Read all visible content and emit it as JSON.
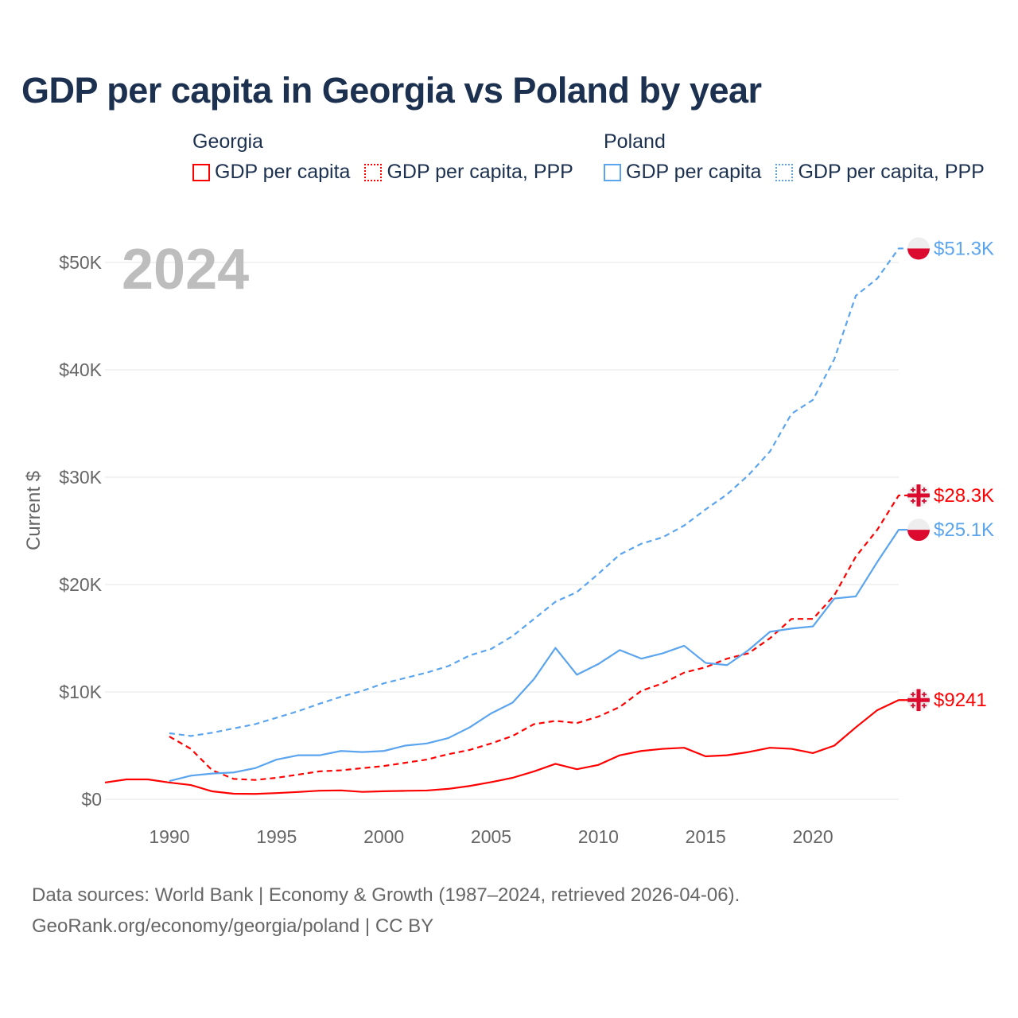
{
  "title": "GDP per capita in Georgia vs Poland by year",
  "legend": [
    {
      "country": "Georgia",
      "color": "#ff0000",
      "items": [
        "GDP per capita",
        "GDP per capita, PPP"
      ]
    },
    {
      "country": "Poland",
      "color": "#5ba4ee",
      "items": [
        "GDP per capita",
        "GDP per capita, PPP"
      ]
    }
  ],
  "source": {
    "line1": "Data sources: World Bank | Economy & Growth (1987–2024, retrieved 2026-04-06).",
    "line2": "GeoRank.org/economy/georgia/poland | CC BY"
  },
  "chart_data": {
    "type": "line",
    "title": "GDP per capita in Georgia vs Poland by year",
    "ylabel": "Current $",
    "xlabel": "",
    "year_watermark": "2024",
    "xlim": [
      1987,
      2024
    ],
    "ylim": [
      0,
      52000
    ],
    "x_ticks": [
      1990,
      1995,
      2000,
      2005,
      2010,
      2015,
      2020
    ],
    "y_ticks": [
      0,
      10000,
      20000,
      30000,
      40000,
      50000
    ],
    "y_tick_labels": [
      "$0",
      "$10K",
      "$20K",
      "$30K",
      "$40K",
      "$50K"
    ],
    "grid": true,
    "series": [
      {
        "name": "Georgia GDP per capita",
        "country": "Georgia",
        "flag": "georgia-flag",
        "color": "#ff0000",
        "dashed": false,
        "end_label": "$9241",
        "start_year": 1987,
        "values": [
          1560,
          1850,
          1850,
          1560,
          1330,
          740,
          520,
          500,
          580,
          680,
          800,
          830,
          690,
          750,
          790,
          820,
          970,
          1240,
          1600,
          2000,
          2600,
          3300,
          2800,
          3200,
          4100,
          4500,
          4700,
          4800,
          4000,
          4100,
          4400,
          4800,
          4700,
          4300,
          5000,
          6700,
          8300,
          9241
        ]
      },
      {
        "name": "Georgia GDP per capita, PPP",
        "country": "Georgia",
        "flag": "georgia-flag",
        "color": "#ff0000",
        "dashed": true,
        "end_label": "$28.3K",
        "start_year": 1990,
        "values": [
          5850,
          4700,
          2700,
          1900,
          1800,
          2000,
          2300,
          2600,
          2700,
          2900,
          3100,
          3400,
          3700,
          4200,
          4600,
          5200,
          5900,
          7000,
          7300,
          7100,
          7700,
          8600,
          10100,
          10800,
          11800,
          12300,
          13100,
          13600,
          15000,
          16800,
          16800,
          19000,
          22600,
          25100,
          28300
        ]
      },
      {
        "name": "Poland GDP per capita",
        "country": "Poland",
        "flag": "poland-flag",
        "color": "#5ba4ee",
        "dashed": false,
        "end_label": "$25.1K",
        "start_year": 1990,
        "values": [
          1700,
          2200,
          2400,
          2500,
          2900,
          3700,
          4100,
          4100,
          4500,
          4400,
          4500,
          5000,
          5200,
          5700,
          6700,
          8000,
          9000,
          11200,
          14100,
          11600,
          12600,
          13900,
          13100,
          13600,
          14300,
          12700,
          12500,
          13900,
          15600,
          15900,
          16100,
          18700,
          18900,
          22100,
          25100
        ]
      },
      {
        "name": "Poland GDP per capita, PPP",
        "country": "Poland",
        "flag": "poland-flag",
        "color": "#5ba4ee",
        "dashed": true,
        "end_label": "$51.3K",
        "start_year": 1990,
        "values": [
          6150,
          5900,
          6200,
          6600,
          7000,
          7600,
          8200,
          8900,
          9550,
          10100,
          10800,
          11300,
          11800,
          12400,
          13400,
          14000,
          15200,
          16800,
          18400,
          19300,
          21000,
          22800,
          23800,
          24400,
          25500,
          27000,
          28400,
          30200,
          32400,
          35900,
          37200,
          41000,
          46900,
          48500,
          51300
        ]
      }
    ]
  }
}
